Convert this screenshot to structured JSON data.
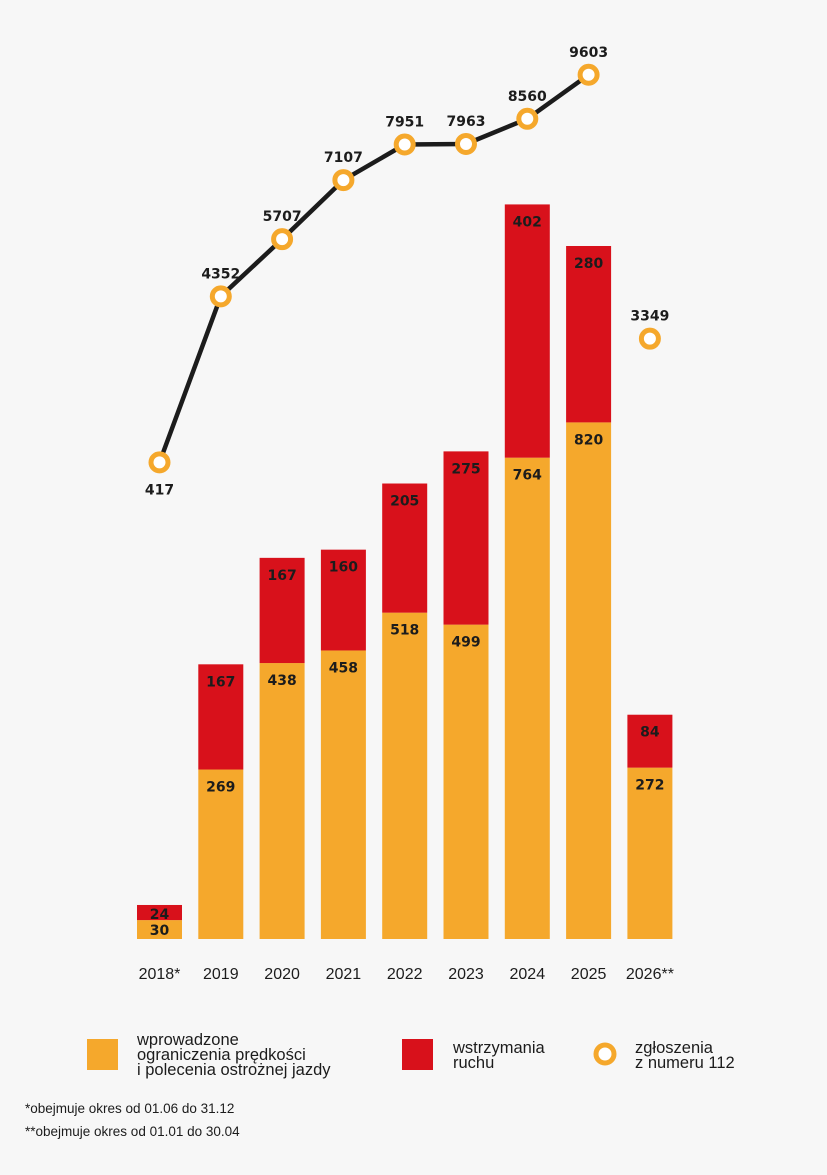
{
  "chart_data": {
    "type": "bar",
    "stacked": true,
    "categories": [
      "2018*",
      "2019",
      "2020",
      "2021",
      "2022",
      "2023",
      "2024",
      "2025",
      "2026**"
    ],
    "series": [
      {
        "name": "wprowadzone ograniczenia prędkości i polecenia ostrożnej jazdy",
        "color": "#f5a82c",
        "values": [
          30,
          269,
          438,
          458,
          518,
          499,
          764,
          820,
          272
        ]
      },
      {
        "name": "wstrzymania ruchu",
        "color": "#d8111b",
        "values": [
          24,
          167,
          167,
          160,
          205,
          275,
          402,
          280,
          84
        ]
      }
    ],
    "line_series": {
      "name": "zgłoszenia z numeru 112",
      "color": "#f5a82c",
      "line_color": "#1c1c1c",
      "values": [
        417,
        4352,
        5707,
        7107,
        7951,
        7963,
        8560,
        9603,
        3349
      ],
      "connected_to_index": 7
    },
    "legend": [
      {
        "text": "wprowadzone\nograniczenia prędkości\ni polecenia ostrożnej jazdy",
        "marker": "square",
        "color": "#f5a82c"
      },
      {
        "text": "wstrzymania\nruchu",
        "marker": "square",
        "color": "#d8111b"
      },
      {
        "text": "zgłoszenia\nz numeru 112",
        "marker": "ring",
        "color": "#f5a82c"
      }
    ],
    "legend_position": "bottom",
    "footnotes": [
      "*obejmuje okres od 01.06 do 31.12",
      "**obejmuje okres od 01.01 do 30.04"
    ],
    "grid": false,
    "title": "",
    "xlabel": "",
    "ylabel": ""
  }
}
